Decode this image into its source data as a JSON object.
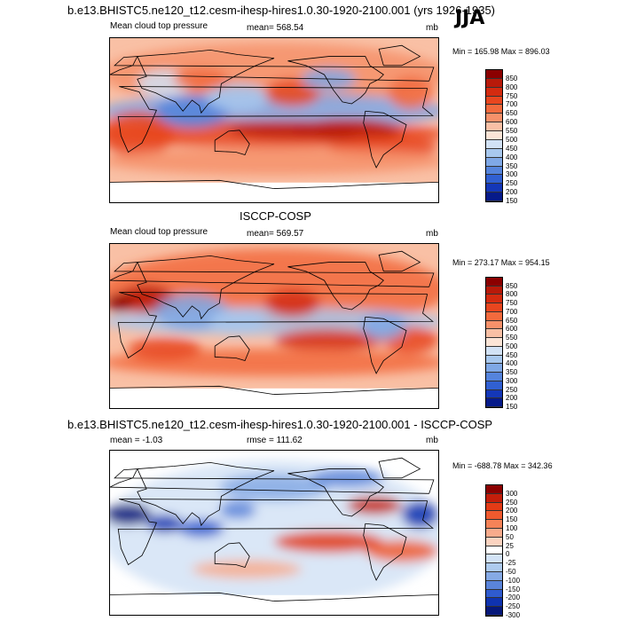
{
  "main_title": "b.e13.BHISTC5.ne120_t12.cesm-ihesp-hires1.0.30-1920-2100.001 (yrs 1926-1935)",
  "season": "JJA",
  "chart_data": [
    {
      "type": "heatmap",
      "panel_title": "",
      "left_label": "Mean cloud top pressure",
      "center_label": "mean= 568.54",
      "right_label": "mb",
      "minmax": "Min = 165.98 Max = 896.03",
      "levels": [
        "850",
        "800",
        "750",
        "700",
        "650",
        "600",
        "550",
        "500",
        "450",
        "400",
        "350",
        "300",
        "250",
        "200",
        "150"
      ],
      "colors": [
        "#8b0000",
        "#b81a0a",
        "#d42b10",
        "#e8461f",
        "#f26a3d",
        "#f6916a",
        "#f9c0a5",
        "#fbe4d6",
        "#d2e2f5",
        "#a8c8ee",
        "#7fa8e6",
        "#5584dc",
        "#3160d2",
        "#1437b8",
        "#061a8a"
      ],
      "mean": 568.54
    },
    {
      "type": "heatmap",
      "panel_title": "ISCCP-COSP",
      "left_label": "Mean cloud top pressure",
      "center_label": "mean= 569.57",
      "right_label": "mb",
      "minmax": "Min = 273.17 Max = 954.15",
      "levels": [
        "850",
        "800",
        "750",
        "700",
        "650",
        "600",
        "550",
        "500",
        "450",
        "400",
        "350",
        "300",
        "250",
        "200",
        "150"
      ],
      "colors": [
        "#8b0000",
        "#b81a0a",
        "#d42b10",
        "#e8461f",
        "#f26a3d",
        "#f6916a",
        "#f9c0a5",
        "#fbe4d6",
        "#d2e2f5",
        "#a8c8ee",
        "#7fa8e6",
        "#5584dc",
        "#3160d2",
        "#1437b8",
        "#061a8a"
      ],
      "mean": 569.57
    },
    {
      "type": "heatmap",
      "panel_title": "b.e13.BHISTC5.ne120_t12.cesm-ihesp-hires1.0.30-1920-2100.001 - ISCCP-COSP",
      "left_label": "mean =  -1.03",
      "center_label": "rmse = 111.62",
      "right_label": "mb",
      "minmax": "Min = -688.78 Max = 342.36",
      "levels": [
        "300",
        "250",
        "200",
        "150",
        "100",
        "50",
        "25",
        "0",
        "-25",
        "-50",
        "-100",
        "-150",
        "-200",
        "-250",
        "-300"
      ],
      "colors": [
        "#8b0000",
        "#c41e0b",
        "#e33b16",
        "#f05a2e",
        "#f58358",
        "#f8ab8c",
        "#fbd3c0",
        "#ffffff",
        "#d3e3f6",
        "#aecbee",
        "#86aae5",
        "#5a84da",
        "#2f5bcf",
        "#0f33b0",
        "#06187a"
      ],
      "mean": -1.03
    }
  ]
}
